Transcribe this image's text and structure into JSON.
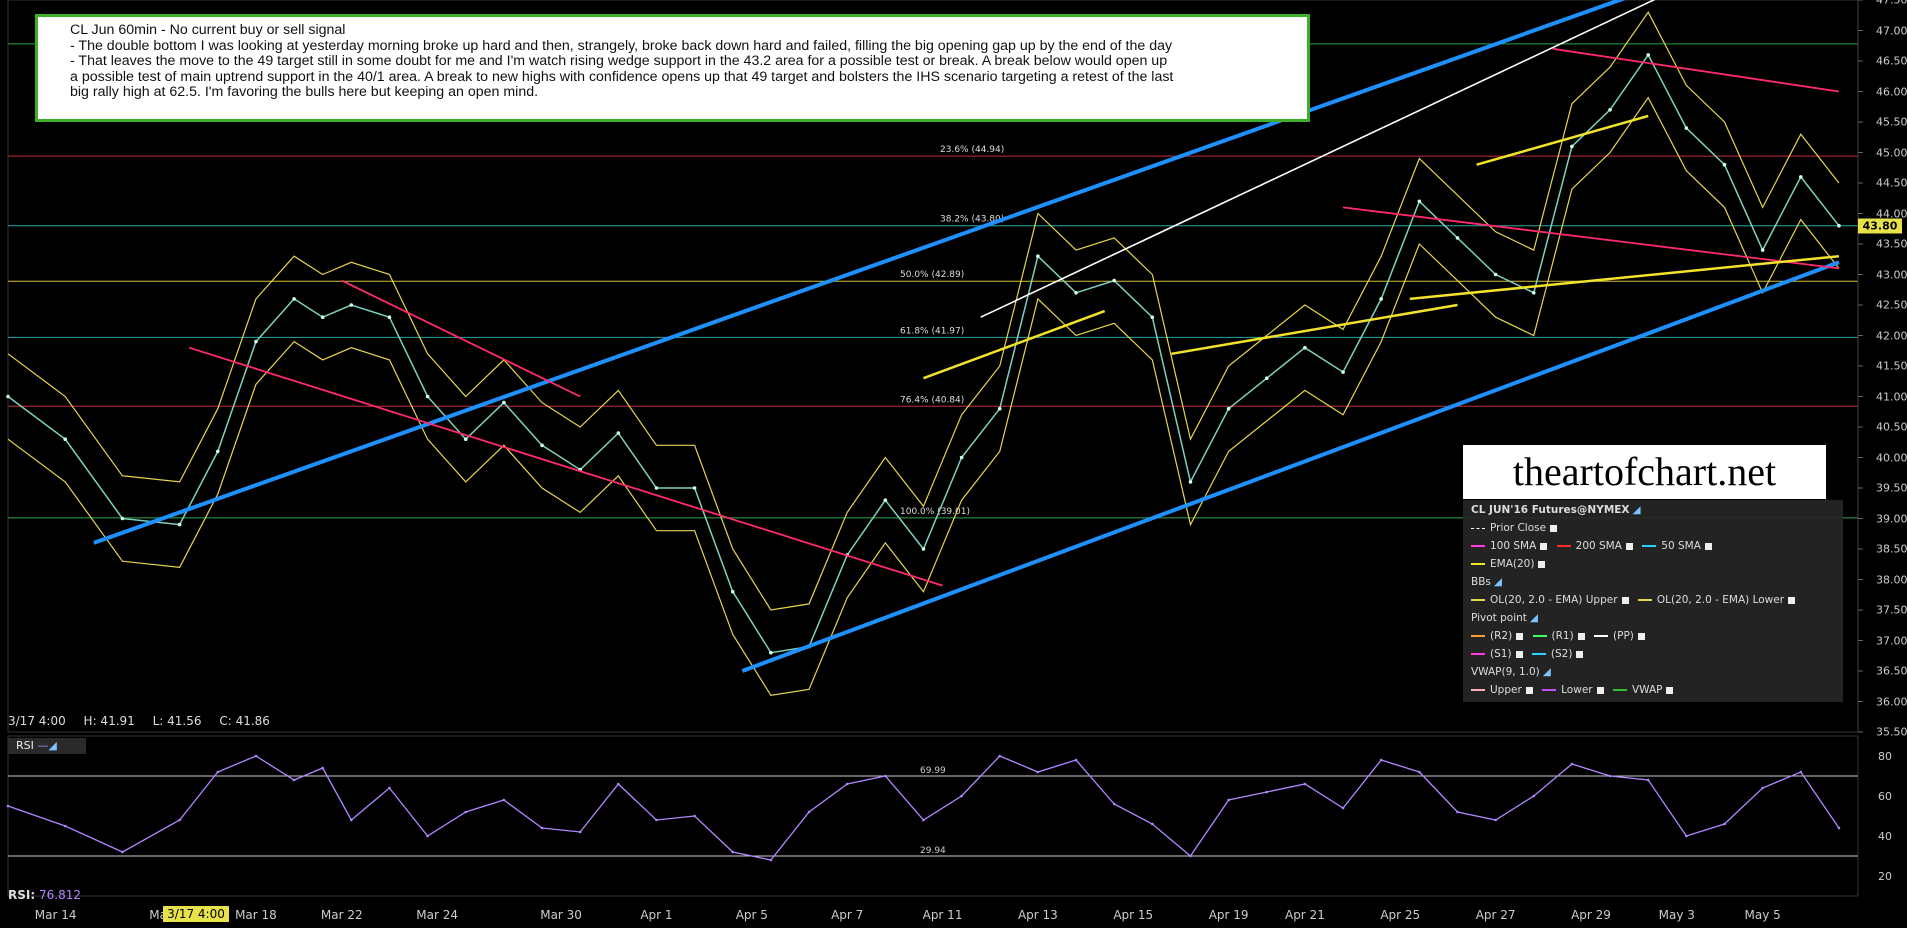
{
  "note": {
    "lines": [
      "CL Jun 60min - No current buy or sell signal",
      "- The double bottom I was looking at yesterday morning broke up hard and then, strangely, broke back down hard and failed, filling the big opening gap up by the end of the day",
      "- That leaves the move to the 49 target still in some doubt for me and I'm watch rising wedge support in the 43.2 area for a possible test or break. A break below would open up",
      "a possible test of main uptrend support in the 40/1 area. A break to new highs with confidence opens up that 49 target and bolsters the IHS scenario targeting a retest of the last",
      "big rally high at 62.5. I'm favoring the bulls here but keeping an open mind."
    ]
  },
  "brand": "theartofchart.net",
  "legend": {
    "title": "CL JUN'16 Futures@NYMEX",
    "prior_close": "Prior Close",
    "sma100": "100 SMA",
    "sma200": "200 SMA",
    "sma50": "50 SMA",
    "ema20": "EMA(20)",
    "bbs": "BBs",
    "bb_upper": "OL(20, 2.0 - EMA) Upper",
    "bb_lower": "OL(20, 2.0 - EMA) Lower",
    "pivot": "Pivot point",
    "r2": "(R2)",
    "r1": "(R1)",
    "pp": "(PP)",
    "s1": "(S1)",
    "s2": "(S2)",
    "vwap": "VWAP(9, 1.0)",
    "vwap_upper": "Upper",
    "vwap_lower": "Lower",
    "vwap_mid": "VWAP"
  },
  "ohlc": {
    "date": "3/17 4:00",
    "high": "H: 41.91",
    "low": "L: 41.56",
    "close": "C: 41.86"
  },
  "rsi": {
    "title": "RSI",
    "readout_label": "RSI:",
    "readout_value": "76.812",
    "level_high": "70.0",
    "level_high_label": "69.99",
    "level_low": "30.0",
    "level_low_label": "29.94"
  },
  "highlight_date": "3/17 4:00",
  "colors": {
    "channel_blue": "#1e90ff",
    "trend_red": "#ff2a6d",
    "wedge_yellow": "#f2e22a",
    "bollinger": "#e6d64a",
    "rsi_line": "#b088ff",
    "fib_green": "#2ea44a",
    "fib_red": "#c0303a",
    "fib_cyan": "#2aa6a6",
    "fib_yellow": "#d4c23a"
  },
  "chart_data": {
    "type": "line",
    "title": "CL Jun 60min",
    "ylim": [
      35.5,
      47.5
    ],
    "y_ticks": [
      "35.50",
      "36.00",
      "36.50",
      "37.00",
      "37.50",
      "38.00",
      "38.50",
      "39.00",
      "39.50",
      "40.00",
      "40.50",
      "41.00",
      "41.50",
      "42.00",
      "42.50",
      "43.00",
      "43.50",
      "44.00",
      "44.50",
      "45.00",
      "45.50",
      "46.00",
      "46.50",
      "47.00",
      "47.50"
    ],
    "x_labels": [
      "Mar 14",
      "Mar 16",
      "Mar 18",
      "Mar 22",
      "Mar 24",
      "Mar 30",
      "Apr 1",
      "Apr 5",
      "Apr 7",
      "Apr 11",
      "Apr 13",
      "Apr 15",
      "Apr 19",
      "Apr 21",
      "Apr 25",
      "Apr 27",
      "Apr 29",
      "May 3",
      "May 5"
    ],
    "last_price": "43.80",
    "fib_levels": [
      {
        "label": "23.6% (44.94)",
        "value": 44.94
      },
      {
        "label": "38.2% (43.80)",
        "value": 43.8
      },
      {
        "label": "50.0% (42.89)",
        "value": 42.89
      },
      {
        "label": "61.8% (41.97)",
        "value": 41.97
      },
      {
        "label": "76.4% (40.84)",
        "value": 40.84
      },
      {
        "label": "100.0% (39.01)",
        "value": 39.01
      }
    ],
    "top_line": 46.78,
    "series": [
      {
        "x": [
          0,
          0.6,
          1.2,
          1.8,
          2.2,
          2.6,
          3,
          3.3,
          3.6,
          4,
          4.4,
          4.8,
          5.2,
          5.6,
          6,
          6.4,
          6.8,
          7.2,
          7.6,
          8,
          8.4,
          8.8,
          9.2,
          9.6,
          10,
          10.4,
          10.8,
          11.2,
          11.6,
          12,
          12.4,
          12.8,
          13.2,
          13.6,
          14,
          14.4,
          14.8,
          15.2,
          15.6,
          16,
          16.4,
          16.8,
          17.2,
          17.6,
          18,
          18.4,
          18.8,
          19.2
        ],
        "y": [
          41.0,
          40.3,
          39.0,
          38.9,
          40.1,
          41.9,
          42.6,
          42.3,
          42.5,
          42.3,
          41.0,
          40.3,
          40.9,
          40.2,
          39.8,
          40.4,
          39.5,
          39.5,
          37.8,
          36.8,
          36.9,
          38.4,
          39.3,
          38.5,
          40.0,
          40.8,
          43.3,
          42.7,
          42.9,
          42.3,
          39.6,
          40.8,
          41.3,
          41.8,
          41.4,
          42.6,
          44.2,
          43.6,
          43.0,
          42.7,
          45.1,
          45.7,
          46.6,
          45.4,
          44.8,
          43.4,
          44.6,
          43.8
        ]
      }
    ],
    "rsi": {
      "ylim": [
        10,
        90
      ],
      "y_ticks": [
        "80",
        "60",
        "40",
        "20"
      ],
      "x": [
        0,
        0.6,
        1.2,
        1.8,
        2.2,
        2.6,
        3,
        3.3,
        3.6,
        4,
        4.4,
        4.8,
        5.2,
        5.6,
        6,
        6.4,
        6.8,
        7.2,
        7.6,
        8,
        8.4,
        8.8,
        9.2,
        9.6,
        10,
        10.4,
        10.8,
        11.2,
        11.6,
        12,
        12.4,
        12.8,
        13.2,
        13.6,
        14,
        14.4,
        14.8,
        15.2,
        15.6,
        16,
        16.4,
        16.8,
        17.2,
        17.6,
        18,
        18.4,
        18.8,
        19.2
      ],
      "y": [
        55,
        45,
        32,
        48,
        72,
        80,
        68,
        74,
        48,
        64,
        40,
        52,
        58,
        44,
        42,
        66,
        48,
        50,
        32,
        28,
        52,
        66,
        70,
        48,
        60,
        80,
        72,
        78,
        56,
        46,
        30,
        58,
        62,
        66,
        54,
        78,
        72,
        52,
        48,
        60,
        76,
        70,
        68,
        40,
        46,
        64,
        72,
        44
      ]
    }
  }
}
